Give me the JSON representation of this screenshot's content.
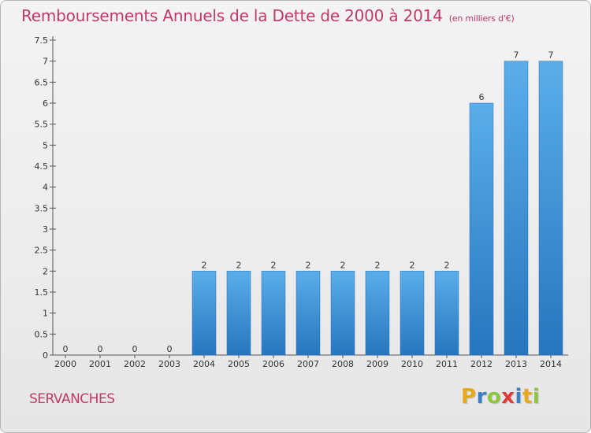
{
  "header": {
    "title": "Remboursements Annuels de la Dette de 2000 à 2014",
    "subtitle": "(en milliers d'€)"
  },
  "footer": {
    "commune": "SERVANCHES",
    "logo_letters": [
      "P",
      "r",
      "o",
      "x",
      "i",
      "t",
      "i"
    ],
    "logo_colors": [
      "#e8a81c",
      "#3a7fc4",
      "#8cc63f",
      "#e03a3a",
      "#3a7fc4",
      "#e8a81c",
      "#8cc63f"
    ]
  },
  "chart_data": {
    "type": "bar",
    "title": "Remboursements Annuels de la Dette de 2000 à 2014",
    "subtitle": "(en milliers d'€)",
    "categories": [
      "2000",
      "2001",
      "2002",
      "2003",
      "2004",
      "2005",
      "2006",
      "2007",
      "2008",
      "2009",
      "2010",
      "2011",
      "2012",
      "2013",
      "2014"
    ],
    "values": [
      0,
      0,
      0,
      0,
      2,
      2,
      2,
      2,
      2,
      2,
      2,
      2,
      6,
      7,
      7
    ],
    "value_labels": [
      "0",
      "0",
      "0",
      "0",
      "2",
      "2",
      "2",
      "2",
      "2",
      "2",
      "2",
      "2",
      "6",
      "7",
      "7"
    ],
    "ylim": [
      0,
      7.5
    ],
    "yticks": [
      {
        "v": 0,
        "label": "0"
      },
      {
        "v": 0.5,
        "label": "0.5"
      },
      {
        "v": 1,
        "label": "1"
      },
      {
        "v": 1.5,
        "label": "1.5"
      },
      {
        "v": 2,
        "label": "2"
      },
      {
        "v": 2.5,
        "label": "2.5"
      },
      {
        "v": 3,
        "label": "3"
      },
      {
        "v": 3.5,
        "label": "3.5"
      },
      {
        "v": 4,
        "label": "4"
      },
      {
        "v": 4.5,
        "label": "4.5"
      },
      {
        "v": 5,
        "label": "5"
      },
      {
        "v": 5.5,
        "label": "5.5"
      },
      {
        "v": 6,
        "label": "6"
      },
      {
        "v": 6.5,
        "label": "6.5"
      },
      {
        "v": 7,
        "label": "7"
      },
      {
        "v": 7.5,
        "label": "7.5"
      }
    ],
    "bar_color": "#3d8fd6",
    "grid": false,
    "xlabel": "",
    "ylabel": ""
  }
}
